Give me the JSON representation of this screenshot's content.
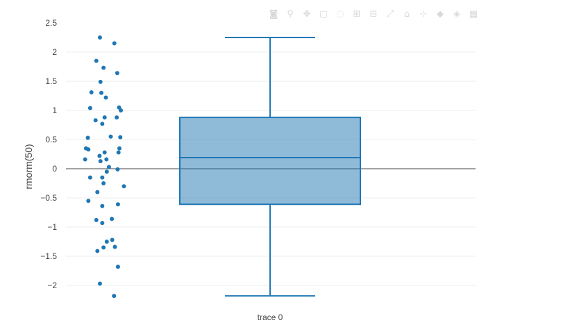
{
  "chart_data": {
    "type": "box",
    "ylabel": "rmorm(50)",
    "xlabel": "",
    "ylim": [
      -2.3,
      2.5
    ],
    "yticks": [
      {
        "value": 2.5,
        "label": "2.5"
      },
      {
        "value": 2,
        "label": "2"
      },
      {
        "value": 1.5,
        "label": "1.5"
      },
      {
        "value": 1,
        "label": "1"
      },
      {
        "value": 0.5,
        "label": "0.5"
      },
      {
        "value": 0,
        "label": "0"
      },
      {
        "value": -0.5,
        "label": "−0.5"
      },
      {
        "value": -1,
        "label": "−1"
      },
      {
        "value": -1.5,
        "label": "−1.5"
      },
      {
        "value": -2,
        "label": "−2"
      }
    ],
    "grid": true,
    "zero_line": true,
    "series": [
      {
        "name": "trace 0",
        "color": "#1f77b4",
        "box": {
          "min": -2.18,
          "q1": -0.61,
          "median": 0.19,
          "q3": 0.88,
          "max": 2.25
        },
        "points": [
          {
            "j": -0.08,
            "y": 2.25
          },
          {
            "j": 0.72,
            "y": 2.15
          },
          {
            "j": -0.28,
            "y": 1.85
          },
          {
            "j": 0.12,
            "y": 1.73
          },
          {
            "j": 0.88,
            "y": 1.64
          },
          {
            "j": -0.05,
            "y": 1.49
          },
          {
            "j": -0.55,
            "y": 1.31
          },
          {
            "j": 0.0,
            "y": 1.3
          },
          {
            "j": 0.25,
            "y": 1.22
          },
          {
            "j": -0.62,
            "y": 1.04
          },
          {
            "j": 0.98,
            "y": 1.05
          },
          {
            "j": 1.08,
            "y": 1.0
          },
          {
            "j": 0.18,
            "y": 0.88
          },
          {
            "j": 0.85,
            "y": 0.88
          },
          {
            "j": -0.32,
            "y": 0.83
          },
          {
            "j": 0.05,
            "y": 0.77
          },
          {
            "j": -0.75,
            "y": 0.53
          },
          {
            "j": 0.52,
            "y": 0.55
          },
          {
            "j": 1.05,
            "y": 0.54
          },
          {
            "j": -0.85,
            "y": 0.35
          },
          {
            "j": -0.72,
            "y": 0.33
          },
          {
            "j": 1.0,
            "y": 0.35
          },
          {
            "j": 0.18,
            "y": 0.28
          },
          {
            "j": 0.95,
            "y": 0.28
          },
          {
            "j": -0.1,
            "y": 0.22
          },
          {
            "j": -0.9,
            "y": 0.16
          },
          {
            "j": 0.28,
            "y": 0.16
          },
          {
            "j": -0.05,
            "y": 0.13
          },
          {
            "j": 0.42,
            "y": 0.03
          },
          {
            "j": 0.9,
            "y": -0.01
          },
          {
            "j": 0.3,
            "y": -0.05
          },
          {
            "j": -0.62,
            "y": -0.15
          },
          {
            "j": 0.05,
            "y": -0.15
          },
          {
            "j": 0.12,
            "y": -0.25
          },
          {
            "j": 1.25,
            "y": -0.3
          },
          {
            "j": -0.22,
            "y": -0.4
          },
          {
            "j": -0.72,
            "y": -0.55
          },
          {
            "j": 0.92,
            "y": -0.61
          },
          {
            "j": 0.05,
            "y": -0.64
          },
          {
            "j": 0.58,
            "y": -0.86
          },
          {
            "j": -0.28,
            "y": -0.88
          },
          {
            "j": 0.05,
            "y": -0.93
          },
          {
            "j": 0.6,
            "y": -1.22
          },
          {
            "j": 0.3,
            "y": -1.25
          },
          {
            "j": 0.75,
            "y": -1.34
          },
          {
            "j": 0.12,
            "y": -1.35
          },
          {
            "j": -0.22,
            "y": -1.41
          },
          {
            "j": 0.92,
            "y": -1.68
          },
          {
            "j": -0.08,
            "y": -1.97
          },
          {
            "j": 0.7,
            "y": -2.18
          }
        ]
      }
    ],
    "categories": [
      "trace 0"
    ]
  },
  "modebar": {
    "icons": [
      "camera-icon",
      "zoom-icon",
      "pan-icon",
      "box-select-icon",
      "lasso-icon",
      "zoom-in-icon",
      "zoom-out-icon",
      "autoscale-icon",
      "reset-axes-icon",
      "spike-lines-icon",
      "hover-closest-icon",
      "hover-compare-icon",
      "plotly-logo-icon"
    ]
  }
}
